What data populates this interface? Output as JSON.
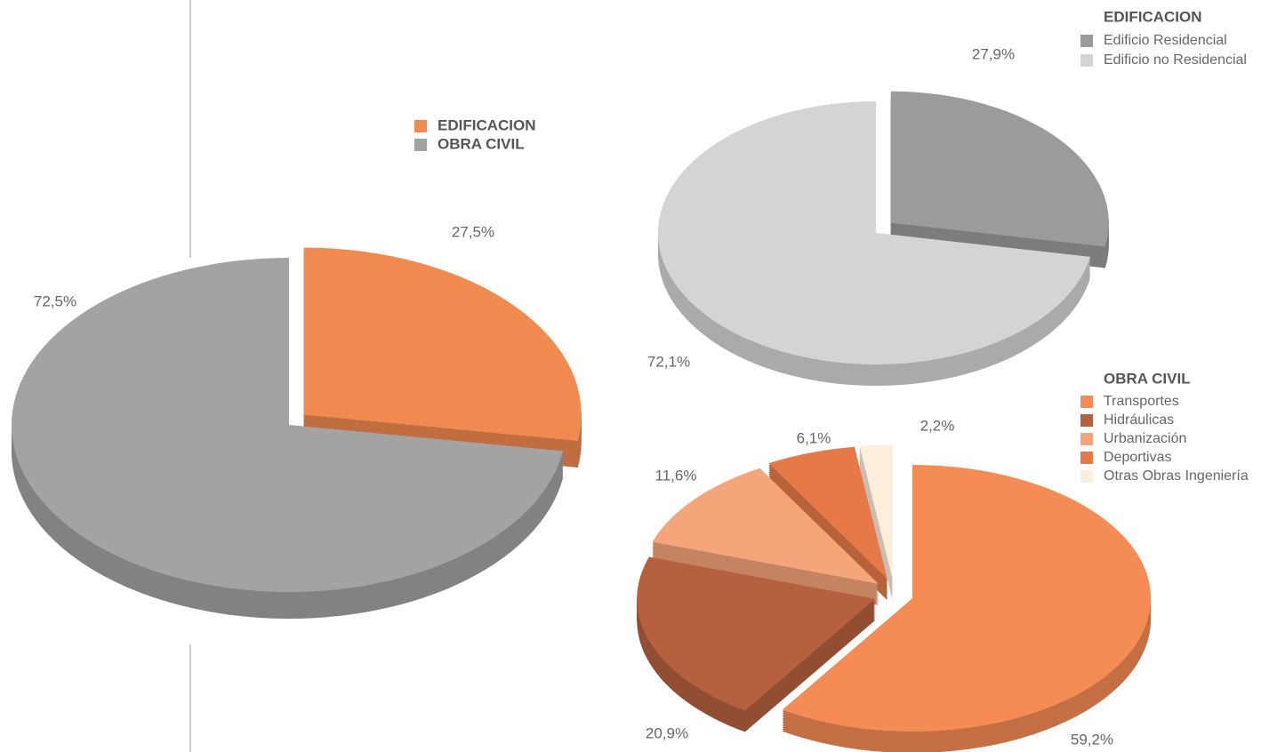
{
  "chart_data": [
    {
      "type": "pie",
      "categories": [
        "EDIFICACION",
        "OBRA CIVIL"
      ],
      "values": [
        27.5,
        72.5
      ],
      "value_labels": [
        "27,5%",
        "72,5%"
      ],
      "colors": [
        "#f08a50",
        "#a3a3a3"
      ]
    },
    {
      "type": "pie",
      "title": "EDIFICACION",
      "categories": [
        "Edificio Residencial",
        "Edificio no Residencial"
      ],
      "values": [
        27.9,
        72.1
      ],
      "value_labels": [
        "27,9%",
        "72,1%"
      ],
      "colors": [
        "#9b9b9b",
        "#d4d4d4"
      ]
    },
    {
      "type": "pie",
      "title": "OBRA CIVIL",
      "categories": [
        "Transportes",
        "Hidráulicas",
        "Urbanización",
        "Deportivas",
        "Otras Obras Ingeniería"
      ],
      "values": [
        59.2,
        20.9,
        11.6,
        6.1,
        2.2
      ],
      "value_labels": [
        "59,2%",
        "20,9%",
        "11,6%",
        "6,1%",
        "2,2%"
      ],
      "colors": [
        "#f58b55",
        "#b56140",
        "#f5a57a",
        "#e57a48",
        "#fbeedd"
      ]
    }
  ]
}
